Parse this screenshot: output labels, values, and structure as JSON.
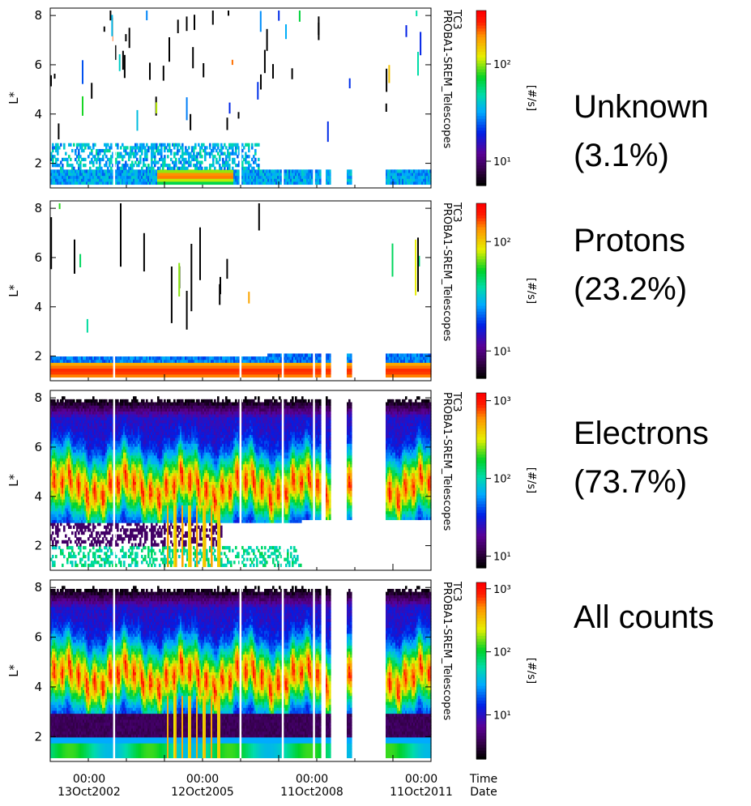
{
  "figure": {
    "time_labels": [
      {
        "time": "00:00",
        "date": "13Oct2002"
      },
      {
        "time": "00:00",
        "date": "12Oct2005"
      },
      {
        "time": "00:00",
        "date": "11Oct2008"
      },
      {
        "time": "00:00",
        "date": "11Oct2011"
      }
    ],
    "time_axis_label": [
      "Time",
      "Date"
    ]
  },
  "chart_data": [
    {
      "type": "heatmap",
      "title": "",
      "ylabel": "L*",
      "side_label": "PROBA1-SREM_Telescopes",
      "side_label2": "TC3",
      "category": "Unknown",
      "percent": "(3.1%)",
      "yticks": [
        "2",
        "4",
        "6",
        "8"
      ],
      "ylim": [
        1,
        8.3
      ],
      "colorbar": {
        "label": "[#/s]",
        "ticks": [
          "10¹",
          "10²"
        ],
        "exponents": [
          1,
          2
        ],
        "range": [
          0.75,
          2.55
        ],
        "scale": "log"
      },
      "profile": "unknown"
    },
    {
      "type": "heatmap",
      "title": "",
      "ylabel": "L*",
      "side_label": "PROBA1-SREM_Telescopes",
      "side_label2": "TC3",
      "category": "Protons",
      "percent": "(23.2%)",
      "yticks": [
        "2",
        "4",
        "6",
        "8"
      ],
      "ylim": [
        1,
        8.3
      ],
      "colorbar": {
        "label": "[#/s]",
        "ticks": [
          "10¹",
          "10²"
        ],
        "exponents": [
          1,
          2
        ],
        "range": [
          0.75,
          2.35
        ],
        "scale": "log"
      },
      "profile": "protons"
    },
    {
      "type": "heatmap",
      "title": "",
      "ylabel": "L*",
      "side_label": "PROBA1-SREM_Telescopes",
      "side_label2": "TC3",
      "category": "Electrons",
      "percent": "(73.7%)",
      "yticks": [
        "2",
        "4",
        "6",
        "8"
      ],
      "ylim": [
        1,
        8.3
      ],
      "colorbar": {
        "label": "[#/s]",
        "ticks": [
          "10¹",
          "10²",
          "10³"
        ],
        "exponents": [
          1,
          2,
          3
        ],
        "range": [
          0.85,
          3.1
        ],
        "scale": "log"
      },
      "profile": "electrons"
    },
    {
      "type": "heatmap",
      "title": "",
      "ylabel": "L*",
      "side_label": "PROBA1-SREM_Telescopes",
      "side_label2": "TC3",
      "category": "All counts",
      "percent": "",
      "yticks": [
        "2",
        "4",
        "6",
        "8"
      ],
      "ylim": [
        1,
        8.3
      ],
      "colorbar": {
        "label": "[#/s]",
        "ticks": [
          "10¹",
          "10²",
          "10³"
        ],
        "exponents": [
          1,
          2,
          3
        ],
        "range": [
          0.3,
          3.1
        ],
        "scale": "log"
      },
      "profile": "all"
    }
  ]
}
